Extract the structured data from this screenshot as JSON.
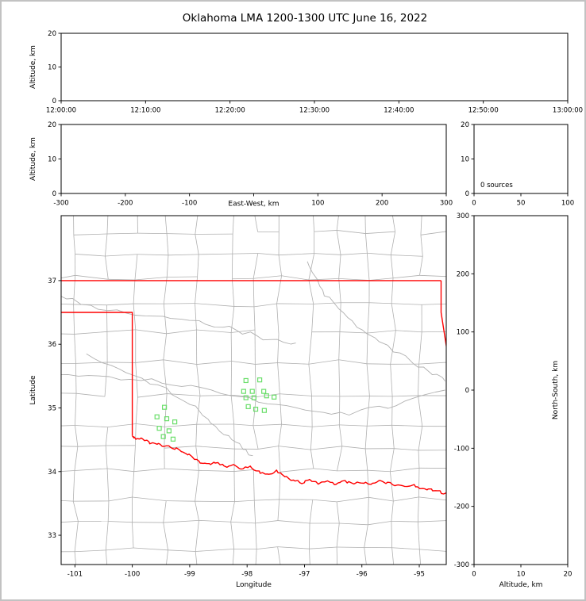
{
  "title": "Oklahoma LMA 1200-1300 UTC June 16, 2022",
  "colors": {
    "frame": "#000000",
    "state_border": "#ff0000",
    "county": "#b0b0b0",
    "river": "#b0b0b0",
    "station": "#6ade6a"
  },
  "chart_data": [
    {
      "id": "time_altitude",
      "type": "scatter",
      "xlim": [
        0,
        3600
      ],
      "xticks": [
        0,
        600,
        1200,
        1800,
        2400,
        3000,
        3600
      ],
      "xtick_labels": [
        "12:00:00",
        "12:10:00",
        "12:20:00",
        "12:30:00",
        "12:40:00",
        "12:50:00",
        "13:00:00"
      ],
      "ylim": [
        0,
        20
      ],
      "yticks": [
        0,
        10,
        20
      ],
      "ytick_labels": [
        "0",
        "10",
        "20"
      ],
      "ylabel": "Altitude, km",
      "points": []
    },
    {
      "id": "ew_altitude",
      "type": "scatter",
      "xlim": [
        -300,
        300
      ],
      "xticks": [
        -300,
        -200,
        -100,
        0,
        100,
        200,
        300
      ],
      "xtick_labels": [
        "-300",
        "-200",
        "-100",
        "",
        "100",
        "200",
        "300"
      ],
      "xlabel": "East-West, km",
      "xlabel_inline": true,
      "ylim": [
        0,
        20
      ],
      "yticks": [
        0,
        10,
        20
      ],
      "ytick_labels": [
        "0",
        "10",
        "20"
      ],
      "ylabel": "Altitude, km",
      "points": []
    },
    {
      "id": "altitude_histogram",
      "type": "histogram",
      "xlim": [
        0,
        100
      ],
      "xticks": [
        0,
        50,
        100
      ],
      "xtick_labels": [
        "0",
        "50",
        "100"
      ],
      "ylim": [
        0,
        20
      ],
      "yticks": [
        0,
        10,
        20
      ],
      "ytick_labels": [
        "0",
        "10",
        "20"
      ],
      "annotation": "0 sources",
      "values": []
    },
    {
      "id": "plan_view_map",
      "type": "map",
      "xlim": [
        -101.24,
        -94.53
      ],
      "xticks": [
        -101,
        -100,
        -99,
        -98,
        -97,
        -96,
        -95
      ],
      "xtick_labels": [
        "-101",
        "-100",
        "-99",
        "-98",
        "-97",
        "-96",
        "-95"
      ],
      "xlabel": "Longitude",
      "ylim": [
        32.54,
        38.02
      ],
      "yticks": [
        33,
        34,
        35,
        36,
        37
      ],
      "ytick_labels": [
        "33",
        "34",
        "35",
        "36",
        "37"
      ],
      "ylabel": "Latitude",
      "state_border_paths": [
        [
          [
            -101.3,
            37.0
          ],
          [
            -94.62,
            37.0
          ]
        ],
        [
          [
            -94.62,
            37.0
          ],
          [
            -94.62,
            36.5
          ],
          [
            -94.43,
            35.4
          ]
        ],
        [
          [
            -101.3,
            36.5
          ],
          [
            -100.0,
            36.5
          ],
          [
            -100.0,
            34.56
          ]
        ],
        [
          [
            -100.0,
            34.56
          ],
          [
            -99.93,
            34.5
          ],
          [
            -99.84,
            34.53
          ],
          [
            -99.72,
            34.46
          ],
          [
            -99.58,
            34.44
          ],
          [
            -99.45,
            34.4
          ],
          [
            -99.3,
            34.38
          ],
          [
            -99.15,
            34.33
          ],
          [
            -99.0,
            34.26
          ],
          [
            -98.85,
            34.16
          ],
          [
            -98.7,
            34.11
          ],
          [
            -98.55,
            34.14
          ],
          [
            -98.4,
            34.08
          ],
          [
            -98.25,
            34.11
          ],
          [
            -98.1,
            34.05
          ],
          [
            -97.95,
            34.08
          ],
          [
            -97.8,
            34.0
          ],
          [
            -97.65,
            33.96
          ],
          [
            -97.5,
            34.01
          ],
          [
            -97.35,
            33.92
          ],
          [
            -97.2,
            33.86
          ],
          [
            -97.05,
            33.82
          ],
          [
            -96.9,
            33.86
          ],
          [
            -96.75,
            33.82
          ],
          [
            -96.6,
            33.85
          ],
          [
            -96.45,
            33.8
          ],
          [
            -96.3,
            33.85
          ],
          [
            -96.15,
            33.8
          ],
          [
            -96.0,
            33.84
          ],
          [
            -95.85,
            33.81
          ],
          [
            -95.7,
            33.85
          ],
          [
            -95.55,
            33.82
          ],
          [
            -95.4,
            33.78
          ],
          [
            -95.25,
            33.76
          ],
          [
            -95.1,
            33.78
          ],
          [
            -94.95,
            33.73
          ],
          [
            -94.8,
            33.72
          ],
          [
            -94.65,
            33.68
          ],
          [
            -94.5,
            33.64
          ]
        ]
      ],
      "rivers": [
        [
          [
            -101.3,
            36.78
          ],
          [
            -100.6,
            36.55
          ],
          [
            -99.8,
            36.45
          ],
          [
            -99.0,
            36.38
          ],
          [
            -98.3,
            36.25
          ],
          [
            -97.7,
            36.1
          ],
          [
            -97.15,
            36.02
          ]
        ],
        [
          [
            -101.3,
            35.52
          ],
          [
            -100.4,
            35.48
          ],
          [
            -99.5,
            35.42
          ],
          [
            -98.6,
            35.28
          ],
          [
            -97.8,
            35.12
          ],
          [
            -97.0,
            34.95
          ],
          [
            -96.2,
            34.92
          ],
          [
            -95.4,
            35.05
          ],
          [
            -94.55,
            35.28
          ]
        ],
        [
          [
            -96.95,
            37.3
          ],
          [
            -96.7,
            36.85
          ],
          [
            -96.35,
            36.5
          ],
          [
            -95.9,
            36.15
          ],
          [
            -95.35,
            35.85
          ],
          [
            -94.8,
            35.55
          ],
          [
            -94.55,
            35.42
          ]
        ],
        [
          [
            -100.8,
            35.85
          ],
          [
            -100.1,
            35.55
          ],
          [
            -99.4,
            35.3
          ],
          [
            -98.9,
            35.0
          ],
          [
            -98.55,
            34.7
          ],
          [
            -98.2,
            34.45
          ],
          [
            -97.9,
            34.25
          ]
        ]
      ],
      "stations": [
        [
          -98.02,
          35.43
        ],
        [
          -97.78,
          35.44
        ],
        [
          -98.06,
          35.26
        ],
        [
          -97.91,
          35.26
        ],
        [
          -98.02,
          35.16
        ],
        [
          -97.88,
          35.16
        ],
        [
          -97.71,
          35.26
        ],
        [
          -97.66,
          35.19
        ],
        [
          -97.98,
          35.02
        ],
        [
          -97.85,
          34.98
        ],
        [
          -97.7,
          34.96
        ],
        [
          -97.53,
          35.17
        ],
        [
          -99.44,
          35.01
        ],
        [
          -99.57,
          34.86
        ],
        [
          -99.4,
          34.83
        ],
        [
          -99.26,
          34.78
        ],
        [
          -99.53,
          34.68
        ],
        [
          -99.36,
          34.64
        ],
        [
          -99.46,
          34.55
        ],
        [
          -99.29,
          34.51
        ]
      ]
    },
    {
      "id": "ns_altitude",
      "type": "scatter",
      "xlim": [
        0,
        20
      ],
      "xticks": [
        0,
        10,
        20
      ],
      "xtick_labels": [
        "0",
        "10",
        "20"
      ],
      "xlabel": "Altitude, km",
      "ylim": [
        -300,
        300
      ],
      "yticks": [
        -300,
        -200,
        -100,
        0,
        100,
        200,
        300
      ],
      "ytick_labels": [
        "-300",
        "-200",
        "-100",
        "0",
        "100",
        "200",
        "300"
      ],
      "ylabel_right": "North-South, km",
      "points": []
    }
  ]
}
